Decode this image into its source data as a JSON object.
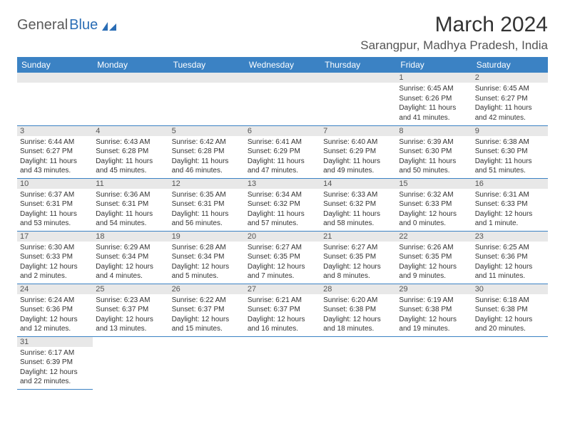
{
  "logo": {
    "textGray": "General",
    "textBlue": "Blue"
  },
  "title": "March 2024",
  "location": "Sarangpur, Madhya Pradesh, India",
  "colors": {
    "headerBg": "#3b82c4",
    "headerText": "#ffffff",
    "dayNumBg": "#e8e8e8",
    "rowBorder": "#3b82c4",
    "bodyText": "#333333",
    "logoGray": "#5a5a5a",
    "logoBlue": "#2a6db5"
  },
  "weekdays": [
    "Sunday",
    "Monday",
    "Tuesday",
    "Wednesday",
    "Thursday",
    "Friday",
    "Saturday"
  ],
  "firstDayIndex": 5,
  "daysInMonth": 31,
  "days": [
    {
      "n": 1,
      "sr": "6:45 AM",
      "ss": "6:26 PM",
      "dl": "11 hours and 41 minutes."
    },
    {
      "n": 2,
      "sr": "6:45 AM",
      "ss": "6:27 PM",
      "dl": "11 hours and 42 minutes."
    },
    {
      "n": 3,
      "sr": "6:44 AM",
      "ss": "6:27 PM",
      "dl": "11 hours and 43 minutes."
    },
    {
      "n": 4,
      "sr": "6:43 AM",
      "ss": "6:28 PM",
      "dl": "11 hours and 45 minutes."
    },
    {
      "n": 5,
      "sr": "6:42 AM",
      "ss": "6:28 PM",
      "dl": "11 hours and 46 minutes."
    },
    {
      "n": 6,
      "sr": "6:41 AM",
      "ss": "6:29 PM",
      "dl": "11 hours and 47 minutes."
    },
    {
      "n": 7,
      "sr": "6:40 AM",
      "ss": "6:29 PM",
      "dl": "11 hours and 49 minutes."
    },
    {
      "n": 8,
      "sr": "6:39 AM",
      "ss": "6:30 PM",
      "dl": "11 hours and 50 minutes."
    },
    {
      "n": 9,
      "sr": "6:38 AM",
      "ss": "6:30 PM",
      "dl": "11 hours and 51 minutes."
    },
    {
      "n": 10,
      "sr": "6:37 AM",
      "ss": "6:31 PM",
      "dl": "11 hours and 53 minutes."
    },
    {
      "n": 11,
      "sr": "6:36 AM",
      "ss": "6:31 PM",
      "dl": "11 hours and 54 minutes."
    },
    {
      "n": 12,
      "sr": "6:35 AM",
      "ss": "6:31 PM",
      "dl": "11 hours and 56 minutes."
    },
    {
      "n": 13,
      "sr": "6:34 AM",
      "ss": "6:32 PM",
      "dl": "11 hours and 57 minutes."
    },
    {
      "n": 14,
      "sr": "6:33 AM",
      "ss": "6:32 PM",
      "dl": "11 hours and 58 minutes."
    },
    {
      "n": 15,
      "sr": "6:32 AM",
      "ss": "6:33 PM",
      "dl": "12 hours and 0 minutes."
    },
    {
      "n": 16,
      "sr": "6:31 AM",
      "ss": "6:33 PM",
      "dl": "12 hours and 1 minute."
    },
    {
      "n": 17,
      "sr": "6:30 AM",
      "ss": "6:33 PM",
      "dl": "12 hours and 2 minutes."
    },
    {
      "n": 18,
      "sr": "6:29 AM",
      "ss": "6:34 PM",
      "dl": "12 hours and 4 minutes."
    },
    {
      "n": 19,
      "sr": "6:28 AM",
      "ss": "6:34 PM",
      "dl": "12 hours and 5 minutes."
    },
    {
      "n": 20,
      "sr": "6:27 AM",
      "ss": "6:35 PM",
      "dl": "12 hours and 7 minutes."
    },
    {
      "n": 21,
      "sr": "6:27 AM",
      "ss": "6:35 PM",
      "dl": "12 hours and 8 minutes."
    },
    {
      "n": 22,
      "sr": "6:26 AM",
      "ss": "6:35 PM",
      "dl": "12 hours and 9 minutes."
    },
    {
      "n": 23,
      "sr": "6:25 AM",
      "ss": "6:36 PM",
      "dl": "12 hours and 11 minutes."
    },
    {
      "n": 24,
      "sr": "6:24 AM",
      "ss": "6:36 PM",
      "dl": "12 hours and 12 minutes."
    },
    {
      "n": 25,
      "sr": "6:23 AM",
      "ss": "6:37 PM",
      "dl": "12 hours and 13 minutes."
    },
    {
      "n": 26,
      "sr": "6:22 AM",
      "ss": "6:37 PM",
      "dl": "12 hours and 15 minutes."
    },
    {
      "n": 27,
      "sr": "6:21 AM",
      "ss": "6:37 PM",
      "dl": "12 hours and 16 minutes."
    },
    {
      "n": 28,
      "sr": "6:20 AM",
      "ss": "6:38 PM",
      "dl": "12 hours and 18 minutes."
    },
    {
      "n": 29,
      "sr": "6:19 AM",
      "ss": "6:38 PM",
      "dl": "12 hours and 19 minutes."
    },
    {
      "n": 30,
      "sr": "6:18 AM",
      "ss": "6:38 PM",
      "dl": "12 hours and 20 minutes."
    },
    {
      "n": 31,
      "sr": "6:17 AM",
      "ss": "6:39 PM",
      "dl": "12 hours and 22 minutes."
    }
  ],
  "labels": {
    "sunrise": "Sunrise:",
    "sunset": "Sunset:",
    "daylight": "Daylight:"
  }
}
